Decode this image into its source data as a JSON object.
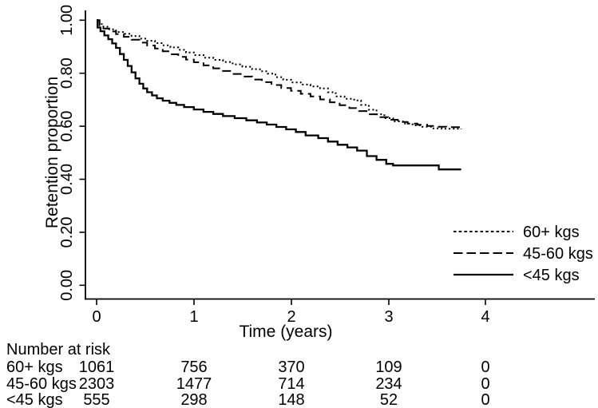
{
  "chart_data": {
    "type": "line",
    "subtype": "kaplan-meier-step-curves",
    "title": "",
    "xlabel": "Time (years)",
    "ylabel": "Retention proportion",
    "xtick_labels": [
      "0",
      "1",
      "2",
      "3",
      "4"
    ],
    "ytick_labels": [
      "0.00",
      "0.20",
      "0.40",
      "0.60",
      "0.80",
      "1.00"
    ],
    "xlim": [
      0,
      4.7
    ],
    "ylim": [
      0,
      1.0
    ],
    "grid": false,
    "legend_position": "inside-right-lower",
    "line_color": "#000000",
    "background_color": "#ffffff",
    "series": [
      {
        "name": "60+ kgs",
        "style": "dotted",
        "points": [
          [
            0,
            1.0
          ],
          [
            0.03,
            0.985
          ],
          [
            0.07,
            0.975
          ],
          [
            0.13,
            0.965
          ],
          [
            0.2,
            0.955
          ],
          [
            0.28,
            0.948
          ],
          [
            0.36,
            0.94
          ],
          [
            0.44,
            0.93
          ],
          [
            0.52,
            0.922
          ],
          [
            0.6,
            0.913
          ],
          [
            0.68,
            0.905
          ],
          [
            0.76,
            0.897
          ],
          [
            0.84,
            0.888
          ],
          [
            0.92,
            0.878
          ],
          [
            1.0,
            0.868
          ],
          [
            1.1,
            0.858
          ],
          [
            1.2,
            0.85
          ],
          [
            1.3,
            0.842
          ],
          [
            1.4,
            0.833
          ],
          [
            1.5,
            0.824
          ],
          [
            1.6,
            0.815
          ],
          [
            1.68,
            0.807
          ],
          [
            1.76,
            0.798
          ],
          [
            1.84,
            0.785
          ],
          [
            1.92,
            0.775
          ],
          [
            2.0,
            0.765
          ],
          [
            2.1,
            0.757
          ],
          [
            2.2,
            0.75
          ],
          [
            2.3,
            0.742
          ],
          [
            2.38,
            0.728
          ],
          [
            2.46,
            0.712
          ],
          [
            2.55,
            0.703
          ],
          [
            2.65,
            0.697
          ],
          [
            2.72,
            0.68
          ],
          [
            2.8,
            0.662
          ],
          [
            2.88,
            0.645
          ],
          [
            2.96,
            0.63
          ],
          [
            3.05,
            0.618
          ],
          [
            3.15,
            0.61
          ],
          [
            3.25,
            0.603
          ],
          [
            3.35,
            0.598
          ],
          [
            3.45,
            0.592
          ],
          [
            3.55,
            0.59
          ],
          [
            3.75,
            0.588
          ]
        ]
      },
      {
        "name": "45-60 kgs",
        "style": "dashed",
        "points": [
          [
            0,
            1.0
          ],
          [
            0.03,
            0.98
          ],
          [
            0.07,
            0.968
          ],
          [
            0.13,
            0.957
          ],
          [
            0.2,
            0.947
          ],
          [
            0.28,
            0.937
          ],
          [
            0.36,
            0.926
          ],
          [
            0.44,
            0.915
          ],
          [
            0.52,
            0.904
          ],
          [
            0.6,
            0.893
          ],
          [
            0.68,
            0.882
          ],
          [
            0.76,
            0.871
          ],
          [
            0.84,
            0.861
          ],
          [
            0.92,
            0.851
          ],
          [
            1.0,
            0.841
          ],
          [
            1.1,
            0.829
          ],
          [
            1.2,
            0.818
          ],
          [
            1.3,
            0.808
          ],
          [
            1.4,
            0.797
          ],
          [
            1.5,
            0.787
          ],
          [
            1.6,
            0.776
          ],
          [
            1.7,
            0.766
          ],
          [
            1.8,
            0.755
          ],
          [
            1.9,
            0.744
          ],
          [
            2.0,
            0.733
          ],
          [
            2.1,
            0.722
          ],
          [
            2.2,
            0.712
          ],
          [
            2.3,
            0.701
          ],
          [
            2.4,
            0.69
          ],
          [
            2.5,
            0.679
          ],
          [
            2.6,
            0.668
          ],
          [
            2.7,
            0.657
          ],
          [
            2.8,
            0.645
          ],
          [
            2.9,
            0.634
          ],
          [
            3.0,
            0.624
          ],
          [
            3.1,
            0.616
          ],
          [
            3.2,
            0.61
          ],
          [
            3.3,
            0.605
          ],
          [
            3.4,
            0.601
          ],
          [
            3.5,
            0.598
          ],
          [
            3.6,
            0.596
          ],
          [
            3.78,
            0.595
          ]
        ]
      },
      {
        "name": "<45 kgs",
        "style": "solid",
        "points": [
          [
            0,
            1.0
          ],
          [
            0.01,
            0.972
          ],
          [
            0.04,
            0.958
          ],
          [
            0.08,
            0.942
          ],
          [
            0.12,
            0.928
          ],
          [
            0.16,
            0.912
          ],
          [
            0.2,
            0.895
          ],
          [
            0.24,
            0.872
          ],
          [
            0.28,
            0.85
          ],
          [
            0.32,
            0.827
          ],
          [
            0.36,
            0.803
          ],
          [
            0.4,
            0.78
          ],
          [
            0.44,
            0.76
          ],
          [
            0.48,
            0.742
          ],
          [
            0.52,
            0.728
          ],
          [
            0.57,
            0.716
          ],
          [
            0.62,
            0.705
          ],
          [
            0.68,
            0.696
          ],
          [
            0.75,
            0.688
          ],
          [
            0.82,
            0.68
          ],
          [
            0.9,
            0.672
          ],
          [
            1.0,
            0.663
          ],
          [
            1.1,
            0.654
          ],
          [
            1.2,
            0.646
          ],
          [
            1.3,
            0.638
          ],
          [
            1.42,
            0.63
          ],
          [
            1.54,
            0.622
          ],
          [
            1.65,
            0.614
          ],
          [
            1.75,
            0.606
          ],
          [
            1.85,
            0.597
          ],
          [
            1.95,
            0.588
          ],
          [
            2.05,
            0.578
          ],
          [
            2.15,
            0.565
          ],
          [
            2.28,
            0.555
          ],
          [
            2.38,
            0.542
          ],
          [
            2.48,
            0.53
          ],
          [
            2.58,
            0.52
          ],
          [
            2.68,
            0.508
          ],
          [
            2.78,
            0.487
          ],
          [
            2.88,
            0.473
          ],
          [
            2.98,
            0.458
          ],
          [
            3.05,
            0.452
          ],
          [
            3.5,
            0.452
          ],
          [
            3.52,
            0.437
          ],
          [
            3.75,
            0.437
          ]
        ]
      }
    ]
  },
  "risk_table": {
    "title": "Number at risk",
    "time_points": [
      0,
      1,
      2,
      3,
      4
    ],
    "rows": [
      {
        "label": "60+ kgs",
        "values": [
          "1061",
          "756",
          "370",
          "109",
          "0"
        ]
      },
      {
        "label": "45-60 kgs",
        "values": [
          "2303",
          "1477",
          "714",
          "234",
          "0"
        ]
      },
      {
        "label": "<45 kgs",
        "values": [
          "555",
          "298",
          "148",
          "52",
          "0"
        ]
      }
    ]
  }
}
